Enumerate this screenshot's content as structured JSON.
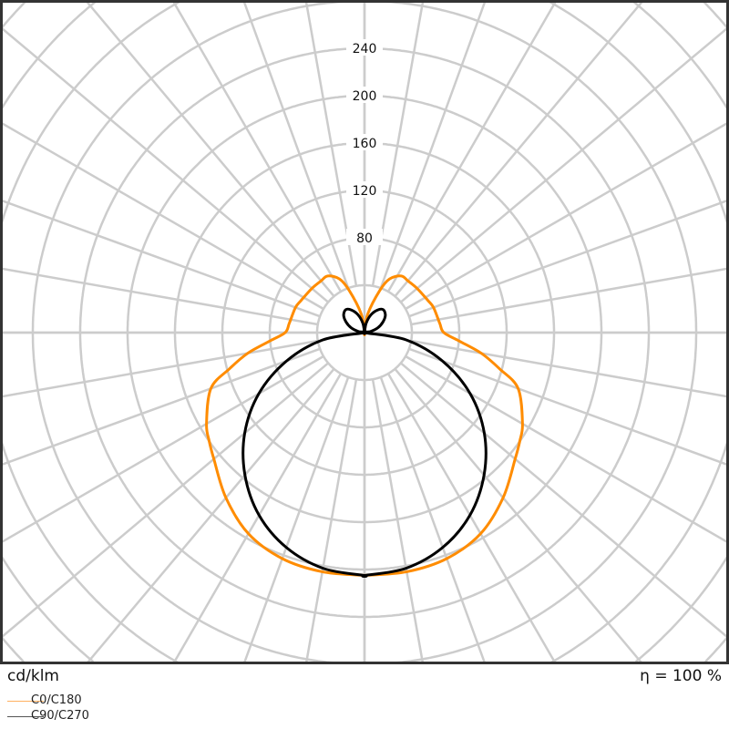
{
  "chart_data": {
    "type": "polar",
    "unit_label": "cd/klm",
    "efficiency_label": "η = 100 %",
    "radial_ticks": [
      80,
      120,
      160,
      200,
      240
    ],
    "ring_step": 40,
    "angle_step_deg": 10,
    "grid": true,
    "legend_placement": "bottom-left",
    "series": [
      {
        "name": "C0/C180",
        "color": "#ff8c00",
        "gamma": [
          0,
          10,
          20,
          30,
          40,
          50,
          55,
          60,
          70,
          75,
          80,
          85,
          90,
          97,
          110,
          117,
          130,
          140,
          147,
          155,
          160,
          170,
          180
        ],
        "values": [
          205,
          205,
          203,
          196,
          182,
          166,
          160,
          154,
          138,
          118,
          100,
          80,
          67,
          64,
          62,
          60,
          58,
          57,
          57,
          50,
          38,
          16,
          0
        ]
      },
      {
        "name": "C90/C270",
        "color": "#000000",
        "gamma": [
          0,
          10,
          20,
          30,
          40,
          50,
          60,
          70,
          80,
          90,
          100,
          110,
          120,
          130,
          141,
          150,
          160,
          170,
          180
        ],
        "values": [
          205,
          202,
          193,
          178,
          157,
          132,
          103,
          70,
          36,
          0,
          5,
          12,
          18,
          23,
          25,
          22,
          16,
          8,
          0
        ]
      }
    ]
  }
}
